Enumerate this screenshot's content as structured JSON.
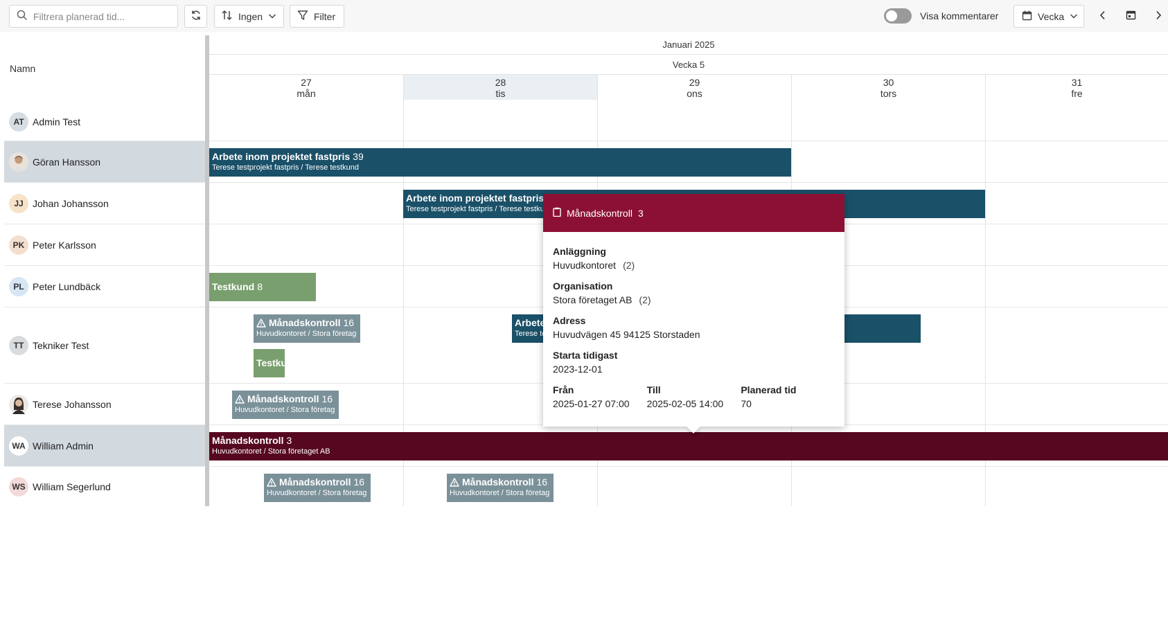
{
  "toolbar": {
    "search_placeholder": "Filtrera planerad tid...",
    "group_label": "Ingen",
    "filter_label": "Filter",
    "comments_label": "Visa kommentarer",
    "view_label": "Vecka"
  },
  "calendar": {
    "month": "Januari 2025",
    "week": "Vecka 5",
    "names_header": "Namn",
    "days": [
      {
        "num": "27",
        "name": "mån"
      },
      {
        "num": "28",
        "name": "tis"
      },
      {
        "num": "29",
        "name": "ons"
      },
      {
        "num": "30",
        "name": "tors"
      },
      {
        "num": "31",
        "name": "fre"
      }
    ]
  },
  "people": [
    {
      "initials": "AT",
      "name": "Admin Test",
      "avatar_color": "#d6dde3"
    },
    {
      "initials": "",
      "name": "Göran Hansson",
      "avatar_color": "#c9b9a6"
    },
    {
      "initials": "JJ",
      "name": "Johan Johansson",
      "avatar_color": "#f6e3c8"
    },
    {
      "initials": "PK",
      "name": "Peter Karlsson",
      "avatar_color": "#f3dfd0"
    },
    {
      "initials": "PL",
      "name": "Peter Lundbäck",
      "avatar_color": "#d6e6f5"
    },
    {
      "initials": "TT",
      "name": "Tekniker Test",
      "avatar_color": "#d9dcde"
    },
    {
      "initials": "",
      "name": "Terese Johansson",
      "avatar_color": "#d9d2cc"
    },
    {
      "initials": "WA",
      "name": "William Admin",
      "avatar_color": "#ffffff"
    },
    {
      "initials": "WS",
      "name": "William Segerlund",
      "avatar_color": "#f3d9d9"
    }
  ],
  "events": {
    "goran_1": {
      "title": "Arbete inom projektet fastpris",
      "count": "39",
      "sub": "Terese testprojekt fastpris / Terese testkund"
    },
    "johan_1": {
      "title": "Arbete inom projektet fastpris",
      "count": "",
      "sub": "Terese testprojekt fastpris / Terese testkund"
    },
    "peterl_1": {
      "title": "Testkund",
      "count": "8",
      "sub": ""
    },
    "tekniker_1": {
      "title": "Månadskontroll",
      "count": "16",
      "sub": "Huvudkontoret / Stora företag"
    },
    "tekniker_2": {
      "title": "Arbete",
      "count": "",
      "sub": "Terese te"
    },
    "tekniker_3": {
      "title": "Testku",
      "count": "",
      "sub": ""
    },
    "terese_1": {
      "title": "Månadskontroll",
      "count": "16",
      "sub": "Huvudkontoret / Stora företag"
    },
    "william_1": {
      "title": "Månadskontroll",
      "count": "3",
      "sub": "Huvudkontoret / Stora företaget AB"
    },
    "segerlund_1": {
      "title": "Månadskontroll",
      "count": "16",
      "sub": "Huvudkontoret / Stora företag"
    },
    "segerlund_2": {
      "title": "Månadskontroll",
      "count": "16",
      "sub": "Huvudkontoret / Stora företag"
    }
  },
  "popover": {
    "title": "Månadskontroll",
    "count": "3",
    "facility_label": "Anläggning",
    "facility_value": "Huvudkontoret",
    "facility_count": "(2)",
    "org_label": "Organisation",
    "org_value": "Stora företaget AB",
    "org_count": "(2)",
    "address_label": "Adress",
    "address_value": "Huvudvägen 45 94125 Storstaden",
    "start_label": "Starta tidigast",
    "start_value": "2023-12-01",
    "from_label": "Från",
    "from_value": "2025-01-27 07:00",
    "to_label": "Till",
    "to_value": "2025-02-05 14:00",
    "planned_label": "Planerad tid",
    "planned_value": "70"
  }
}
